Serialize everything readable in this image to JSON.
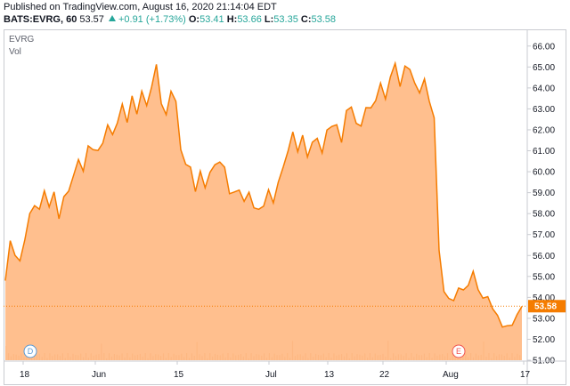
{
  "header": {
    "published": "Published on TradingView.com, August 16, 2020 21:14:04 EDT",
    "symbol": "BATS:EVRG, 60",
    "last": "53.57",
    "change": "+0.91 (+1.73%)",
    "o_label": "O:",
    "o_value": "53.41",
    "h_label": "H:",
    "h_value": "53.66",
    "l_label": "L:",
    "l_value": "53.35",
    "c_label": "C:",
    "c_value": "53.58"
  },
  "legend": {
    "symbol": "EVRG",
    "volume": "Vol"
  },
  "colors": {
    "line": "#f57c00",
    "fill": "#ffb47a",
    "current_price": "#f57c00",
    "up": "#26a69a"
  },
  "markers": {
    "dividend": {
      "letter": "D",
      "color": "#5b9bd5"
    },
    "earnings": {
      "letter": "E",
      "color": "#ef5350"
    }
  },
  "chart_data": {
    "type": "area",
    "title": "",
    "xlabel": "",
    "ylabel": "",
    "x_ticks": [
      "18",
      "Jun",
      "15",
      "Jul",
      "13",
      "22",
      "Aug",
      "17"
    ],
    "y_ticks": [
      "51.00",
      "52.00",
      "53.00",
      "54.00",
      "55.00",
      "56.00",
      "57.00",
      "58.00",
      "59.00",
      "60.00",
      "61.00",
      "62.00",
      "63.00",
      "64.00",
      "65.00",
      "66.00"
    ],
    "ylim": [
      51,
      66.5
    ],
    "current_price": "53.58",
    "series": [
      {
        "values": [
          54.8,
          56.6,
          56.2,
          55.5,
          57.0,
          57.8,
          58.5,
          58.2,
          59.0,
          58.5,
          58.8,
          58.0,
          58.6,
          59.2,
          59.8,
          60.5,
          60.2,
          61.0,
          61.3,
          60.8,
          61.5,
          62.2,
          61.7,
          62.5,
          63.0,
          62.6,
          63.4,
          62.9,
          63.8,
          63.1,
          64.2,
          64.9,
          63.5,
          62.5,
          64.0,
          63.3,
          61.0,
          60.5,
          60.0,
          59.3,
          59.8,
          59.4,
          59.9,
          60.3,
          60.6,
          60.0,
          59.2,
          58.8,
          59.3,
          58.5,
          59.0,
          58.4,
          58.0,
          58.6,
          58.9,
          58.7,
          59.4,
          60.2,
          61.1,
          61.7,
          61.2,
          61.5,
          60.9,
          61.3,
          61.6,
          61.0,
          61.8,
          62.4,
          62.0,
          61.6,
          62.8,
          63.1,
          62.4,
          62.0,
          63.3,
          62.8,
          63.6,
          64.1,
          63.5,
          64.6,
          65.0,
          64.3,
          64.8,
          65.1,
          64.1,
          63.8,
          64.5,
          63.2,
          62.8,
          56.0,
          54.5,
          53.8,
          53.9,
          54.5,
          54.2,
          54.8,
          55.0,
          54.6,
          53.8,
          54.1,
          53.5,
          53.0,
          52.8,
          52.4,
          52.9,
          53.0,
          53.57
        ]
      }
    ],
    "volume_baseline_note": ""
  }
}
